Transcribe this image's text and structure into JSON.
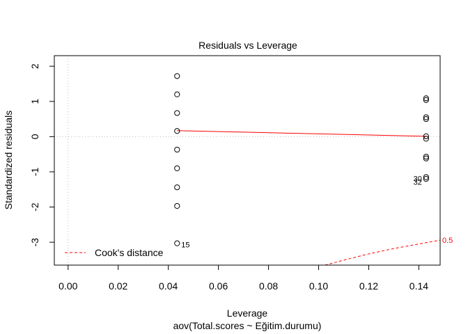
{
  "chart_data": {
    "type": "scatter",
    "title": "Residuals vs Leverage",
    "subtitle": "aov(Total.scores ~ Eğitim.durumu)",
    "xlabel": "Leverage",
    "ylabel": "Standardized residuals",
    "xlim": [
      -0.0055,
      0.1485
    ],
    "ylim": [
      -3.65,
      2.3
    ],
    "xticks": [
      0.0,
      0.02,
      0.04,
      0.06,
      0.08,
      0.1,
      0.12,
      0.14
    ],
    "xtick_labels": [
      "0.00",
      "0.02",
      "0.04",
      "0.06",
      "0.08",
      "0.10",
      "0.12",
      "0.14"
    ],
    "yticks": [
      -3,
      -2,
      -1,
      0,
      1,
      2
    ],
    "ytick_labels": [
      "-3",
      "-2",
      "-1",
      "0",
      "1",
      "2"
    ],
    "points": [
      {
        "x": 0.0435,
        "y": 1.72
      },
      {
        "x": 0.0435,
        "y": 1.2
      },
      {
        "x": 0.0435,
        "y": 0.67
      },
      {
        "x": 0.0435,
        "y": 0.16
      },
      {
        "x": 0.0435,
        "y": -0.37
      },
      {
        "x": 0.0435,
        "y": -0.9
      },
      {
        "x": 0.0435,
        "y": -1.44
      },
      {
        "x": 0.0435,
        "y": -1.97
      },
      {
        "x": 0.0435,
        "y": -3.03
      },
      {
        "x": 0.1429,
        "y": 1.09
      },
      {
        "x": 0.1429,
        "y": 1.04
      },
      {
        "x": 0.1429,
        "y": 0.55
      },
      {
        "x": 0.1429,
        "y": 0.5
      },
      {
        "x": 0.1429,
        "y": 0.01
      },
      {
        "x": 0.1429,
        "y": -0.06
      },
      {
        "x": 0.1429,
        "y": -0.57
      },
      {
        "x": 0.1429,
        "y": -0.62
      },
      {
        "x": 0.1429,
        "y": -1.15
      },
      {
        "x": 0.1429,
        "y": -1.2
      }
    ],
    "point_labels": [
      {
        "text": "15",
        "x": 0.0435,
        "y": -3.03,
        "side": "right"
      },
      {
        "text": "30",
        "x": 0.1429,
        "y": -1.15,
        "side": "left"
      },
      {
        "text": "32",
        "x": 0.1429,
        "y": -1.25,
        "side": "left"
      }
    ],
    "smooth_line": {
      "x": [
        0.0435,
        0.1429
      ],
      "y": [
        0.17,
        0.01
      ],
      "color": "#ff0000"
    },
    "cooks_distance": {
      "level_label": "0.5",
      "curve": [
        [
          0.1025,
          -3.65
        ],
        [
          0.11,
          -3.51
        ],
        [
          0.12,
          -3.33
        ],
        [
          0.13,
          -3.18
        ],
        [
          0.14,
          -3.05
        ],
        [
          0.1485,
          -2.94
        ]
      ],
      "color": "#ff0000"
    },
    "reference_lines": {
      "h": 0,
      "v": 0
    },
    "legend": {
      "position": "bottom-left",
      "label": "Cook's distance"
    },
    "grid": false
  }
}
